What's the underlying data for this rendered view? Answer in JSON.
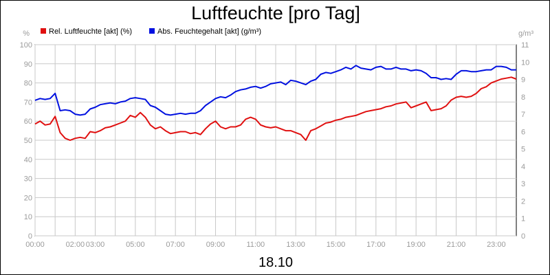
{
  "chart_data": {
    "type": "line",
    "title": "Luftfeuchte [pro Tag]",
    "xlabel": "18.10",
    "y_unit_left": "%",
    "y_unit_right": "g/m³",
    "ylim_left": [
      0,
      100
    ],
    "ylim_right": [
      0,
      11
    ],
    "y_ticks_left": [
      0,
      10,
      20,
      30,
      40,
      50,
      60,
      70,
      80,
      90,
      100
    ],
    "y_ticks_right": [
      0,
      1,
      2,
      3,
      4,
      5,
      6,
      7,
      8,
      9,
      10,
      11
    ],
    "xlim": [
      0,
      24
    ],
    "x_ticks": [
      {
        "x": 0,
        "label": "00:00"
      },
      {
        "x": 1,
        "label": ""
      },
      {
        "x": 2,
        "label": "02:00"
      },
      {
        "x": 3,
        "label": "03:00"
      },
      {
        "x": 4,
        "label": ""
      },
      {
        "x": 5,
        "label": "05:00"
      },
      {
        "x": 6,
        "label": ""
      },
      {
        "x": 7,
        "label": "07:00"
      },
      {
        "x": 8,
        "label": ""
      },
      {
        "x": 9,
        "label": "09:00"
      },
      {
        "x": 10,
        "label": ""
      },
      {
        "x": 11,
        "label": "11:00"
      },
      {
        "x": 12,
        "label": ""
      },
      {
        "x": 13,
        "label": "13:00"
      },
      {
        "x": 14,
        "label": ""
      },
      {
        "x": 15,
        "label": "15:00"
      },
      {
        "x": 16,
        "label": ""
      },
      {
        "x": 17,
        "label": "17:00"
      },
      {
        "x": 18,
        "label": ""
      },
      {
        "x": 19,
        "label": "19:00"
      },
      {
        "x": 20,
        "label": ""
      },
      {
        "x": 21,
        "label": "21:00"
      },
      {
        "x": 22,
        "label": ""
      },
      {
        "x": 23,
        "label": "23:00"
      }
    ],
    "grid": true,
    "legend_position": "top-left",
    "series": [
      {
        "name": "Rel. Luftfeuchte [akt] (%)",
        "axis": "left",
        "color": "#e01010",
        "x": [
          0,
          0.25,
          0.5,
          0.75,
          1.0,
          1.25,
          1.5,
          1.75,
          2.0,
          2.25,
          2.5,
          2.75,
          3.0,
          3.25,
          3.5,
          3.75,
          4.0,
          4.25,
          4.5,
          4.75,
          5.0,
          5.25,
          5.5,
          5.75,
          6.0,
          6.25,
          6.5,
          6.75,
          7.0,
          7.25,
          7.5,
          7.75,
          8.0,
          8.25,
          8.5,
          8.75,
          9.0,
          9.25,
          9.5,
          9.75,
          10.0,
          10.25,
          10.5,
          10.75,
          11.0,
          11.25,
          11.5,
          11.75,
          12.0,
          12.25,
          12.5,
          12.75,
          13.0,
          13.25,
          13.5,
          13.75,
          14.0,
          14.25,
          14.5,
          14.75,
          15.0,
          15.25,
          15.5,
          15.75,
          16.0,
          16.25,
          16.5,
          16.75,
          17.0,
          17.25,
          17.5,
          17.75,
          18.0,
          18.25,
          18.5,
          18.75,
          19.0,
          19.25,
          19.5,
          19.75,
          20.0,
          20.25,
          20.5,
          20.75,
          21.0,
          21.25,
          21.5,
          21.75,
          22.0,
          22.25,
          22.5,
          22.75,
          23.0,
          23.25,
          23.5,
          23.75,
          24.0
        ],
        "values": [
          58.5,
          60,
          58,
          58.5,
          62.5,
          54,
          51,
          50,
          51,
          51.5,
          51,
          54.5,
          54,
          55,
          56.5,
          57,
          58,
          59,
          60,
          63,
          62,
          64.5,
          62,
          58,
          56,
          57,
          55,
          53.5,
          54,
          54.5,
          54.5,
          53.5,
          54,
          53,
          56,
          58.5,
          60,
          57,
          56,
          57,
          57,
          58,
          61,
          62,
          61,
          58,
          57,
          56.5,
          57,
          56,
          55,
          55,
          54,
          53,
          50,
          55,
          56,
          57.5,
          59,
          59.5,
          60.5,
          61,
          62,
          62.5,
          63,
          64,
          65,
          65.5,
          66,
          66.5,
          67.5,
          68,
          69,
          69.5,
          70,
          67,
          68,
          69,
          70,
          65.5,
          66,
          66.5,
          68,
          71,
          72.5,
          73,
          72.5,
          73,
          74.5,
          77,
          78,
          80,
          81,
          82,
          82.5,
          83,
          82
        ]
      },
      {
        "name": "Abs. Feuchtegehalt [akt] (g/m³)",
        "axis": "right",
        "color": "#0010e0",
        "x": [
          0,
          0.25,
          0.5,
          0.75,
          1.0,
          1.25,
          1.5,
          1.75,
          2.0,
          2.25,
          2.5,
          2.75,
          3.0,
          3.25,
          3.5,
          3.75,
          4.0,
          4.25,
          4.5,
          4.75,
          5.0,
          5.25,
          5.5,
          5.75,
          6.0,
          6.25,
          6.5,
          6.75,
          7.0,
          7.25,
          7.5,
          7.75,
          8.0,
          8.25,
          8.5,
          8.75,
          9.0,
          9.25,
          9.5,
          9.75,
          10.0,
          10.25,
          10.5,
          10.75,
          11.0,
          11.25,
          11.5,
          11.75,
          12.0,
          12.25,
          12.5,
          12.75,
          13.0,
          13.25,
          13.5,
          13.75,
          14.0,
          14.25,
          14.5,
          14.75,
          15.0,
          15.25,
          15.5,
          15.75,
          16.0,
          16.25,
          16.5,
          16.75,
          17.0,
          17.25,
          17.5,
          17.75,
          18.0,
          18.25,
          18.5,
          18.75,
          19.0,
          19.25,
          19.5,
          19.75,
          20.0,
          20.25,
          20.5,
          20.75,
          21.0,
          21.25,
          21.5,
          21.75,
          22.0,
          22.25,
          22.5,
          22.75,
          23.0,
          23.25,
          23.5,
          23.75,
          24.0
        ],
        "values": [
          7.8,
          7.9,
          7.85,
          7.9,
          8.2,
          7.2,
          7.25,
          7.2,
          7.0,
          6.95,
          7.0,
          7.3,
          7.4,
          7.55,
          7.6,
          7.65,
          7.6,
          7.7,
          7.75,
          7.9,
          7.95,
          7.9,
          7.85,
          7.5,
          7.4,
          7.2,
          7.0,
          6.95,
          7.0,
          7.05,
          7.0,
          7.05,
          7.05,
          7.2,
          7.5,
          7.7,
          7.9,
          8.0,
          7.95,
          8.1,
          8.3,
          8.4,
          8.45,
          8.55,
          8.6,
          8.5,
          8.6,
          8.75,
          8.8,
          8.85,
          8.7,
          8.95,
          8.9,
          8.8,
          8.7,
          8.9,
          9.0,
          9.3,
          9.4,
          9.35,
          9.45,
          9.55,
          9.7,
          9.6,
          9.8,
          9.65,
          9.6,
          9.55,
          9.7,
          9.75,
          9.6,
          9.6,
          9.7,
          9.6,
          9.6,
          9.5,
          9.55,
          9.5,
          9.35,
          9.1,
          9.1,
          9.0,
          9.05,
          9.0,
          9.3,
          9.5,
          9.5,
          9.45,
          9.45,
          9.5,
          9.55,
          9.55,
          9.75,
          9.75,
          9.7,
          9.55,
          9.55
        ]
      }
    ]
  }
}
